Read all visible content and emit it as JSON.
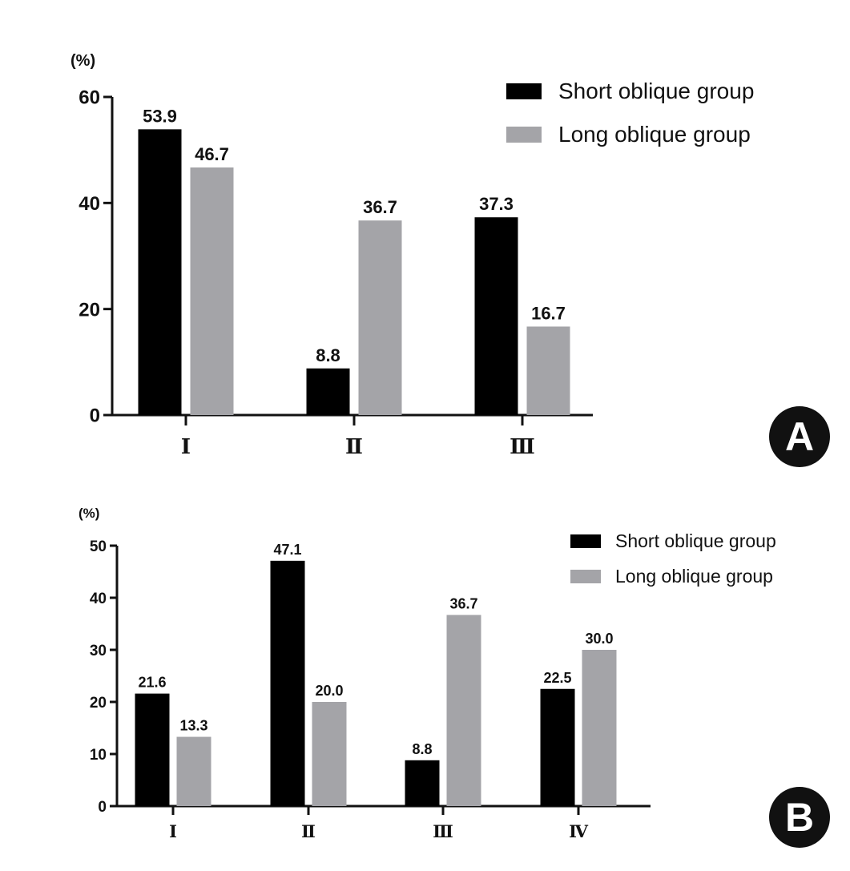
{
  "colors": {
    "short": "#000000",
    "long": "#a4a4a8",
    "axis": "#111111",
    "badge": "#111111"
  },
  "legend": {
    "short_label": "Short oblique group",
    "long_label": "Long oblique group"
  },
  "chart_data": [
    {
      "panel": "A",
      "type": "bar",
      "ylabel": "(%)",
      "ylim": [
        0,
        60
      ],
      "yticks": [
        0,
        20,
        40,
        60
      ],
      "categories": [
        "Ⅰ",
        "Ⅱ",
        "Ⅲ"
      ],
      "series": [
        {
          "name": "Short oblique group",
          "values": [
            53.9,
            8.8,
            37.3
          ],
          "labels": [
            "53.9",
            "8.8",
            "37.3"
          ]
        },
        {
          "name": "Long oblique group",
          "values": [
            46.7,
            36.7,
            16.7
          ],
          "labels": [
            "46.7",
            "36.7",
            "16.7"
          ]
        }
      ],
      "legend_position": "top-right"
    },
    {
      "panel": "B",
      "type": "bar",
      "ylabel": "(%)",
      "ylim": [
        0,
        50
      ],
      "yticks": [
        0,
        10,
        20,
        30,
        40,
        50
      ],
      "categories": [
        "Ⅰ",
        "Ⅱ",
        "Ⅲ",
        "Ⅳ"
      ],
      "series": [
        {
          "name": "Short oblique group",
          "values": [
            21.6,
            47.1,
            8.8,
            22.5
          ],
          "labels": [
            "21.6",
            "47.1",
            "8.8",
            "22.5"
          ]
        },
        {
          "name": "Long oblique group",
          "values": [
            13.3,
            20.0,
            36.7,
            30.0
          ],
          "labels": [
            "13.3",
            "20.0",
            "36.7",
            "30.0"
          ]
        }
      ],
      "legend_position": "top-right"
    }
  ]
}
